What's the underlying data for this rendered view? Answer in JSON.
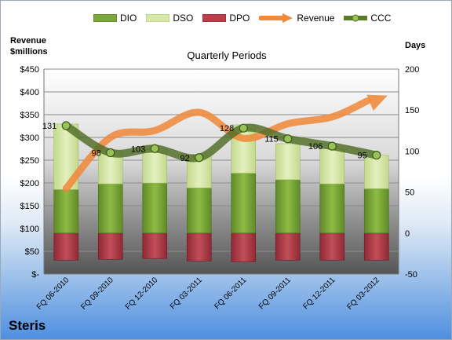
{
  "chart_data": {
    "type": "bar",
    "title": "Quarterly Periods",
    "company": "Steris",
    "ylabel_left": "Revenue\n$millions",
    "ylabel_right": "Days",
    "categories": [
      "FQ 06-2010",
      "FQ 09-2010",
      "FQ 12-2010",
      "FQ 03-2011",
      "FQ 06-2011",
      "FQ 09-2011",
      "FQ 12-2011",
      "FQ 03-2012"
    ],
    "series": [
      {
        "name": "DIO",
        "axis": "right",
        "kind": "stacked-bar",
        "values": [
          53,
          60,
          61,
          55,
          73,
          65,
          60,
          54
        ]
      },
      {
        "name": "DSO",
        "axis": "right",
        "kind": "stacked-bar",
        "values": [
          80,
          40,
          42,
          39,
          59,
          44,
          43,
          41
        ]
      },
      {
        "name": "DPO",
        "axis": "right",
        "kind": "negative-bar",
        "values": [
          -33,
          -32,
          -31,
          -34,
          -35,
          -33,
          -33,
          -33
        ]
      },
      {
        "name": "Revenue",
        "axis": "left",
        "kind": "line",
        "values": [
          188,
          300,
          315,
          355,
          298,
          330,
          345,
          385
        ]
      },
      {
        "name": "CCC",
        "axis": "right",
        "kind": "line",
        "values": [
          131,
          98,
          103,
          92,
          128,
          115,
          106,
          95
        ],
        "labels": [
          "131",
          "98",
          "103",
          "92",
          "128",
          "115",
          "106",
          "95"
        ]
      }
    ],
    "left_axis": {
      "min": 0,
      "max": 450,
      "step": 50,
      "tick_labels": [
        "$-",
        "$50",
        "$100",
        "$150",
        "$200",
        "$250",
        "$300",
        "$350",
        "$400",
        "$450"
      ]
    },
    "right_axis": {
      "min": -50,
      "max": 200,
      "step": 50,
      "tick_labels": [
        "-50",
        "0",
        "50",
        "100",
        "150",
        "200"
      ]
    },
    "colors": {
      "DIO": "#7aa83a",
      "DSO": "#d7e8a6",
      "DPO": "#b9404a",
      "Revenue": "#ef8a3c",
      "CCC": "#5a7a2c"
    },
    "grid": true,
    "legend_position": "top"
  }
}
